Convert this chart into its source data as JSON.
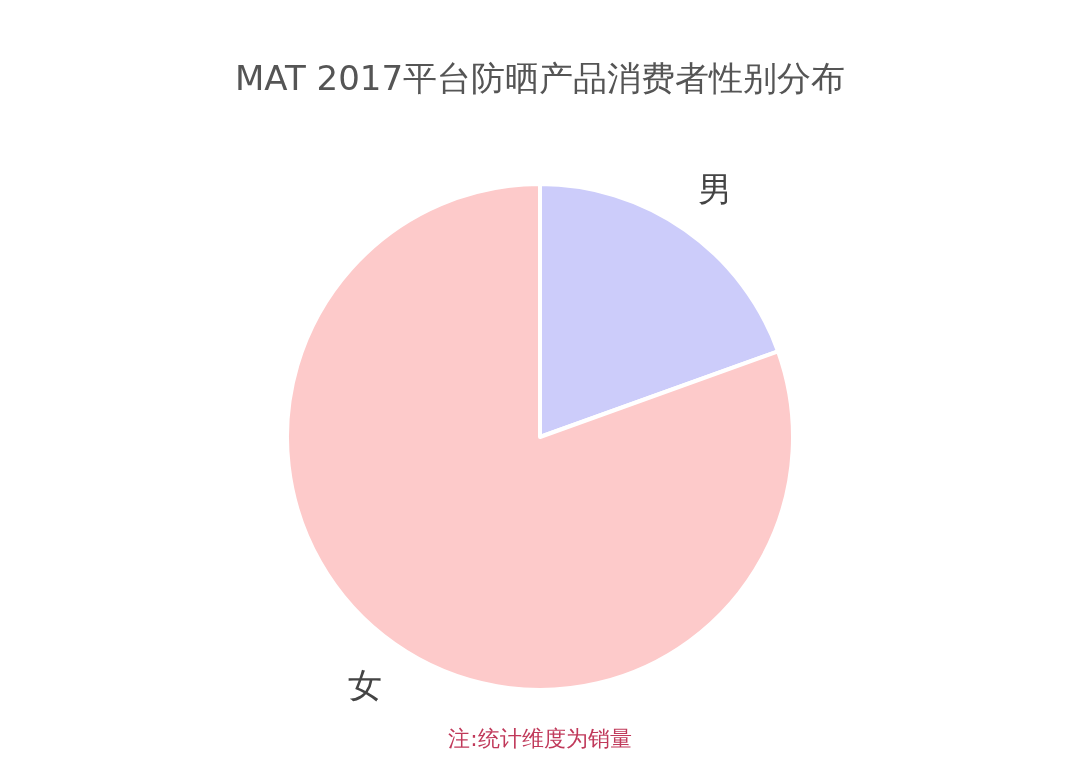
{
  "chart_data": {
    "type": "pie",
    "title": "MAT 2017平台防晒产品消费者性别分布",
    "categories": [
      "男",
      "女"
    ],
    "values": [
      19.5,
      80.5
    ],
    "colors": [
      "#ccccfa",
      "#fdcaca"
    ],
    "annotations": [
      "注:统计维度为销量"
    ],
    "legend": false
  }
}
